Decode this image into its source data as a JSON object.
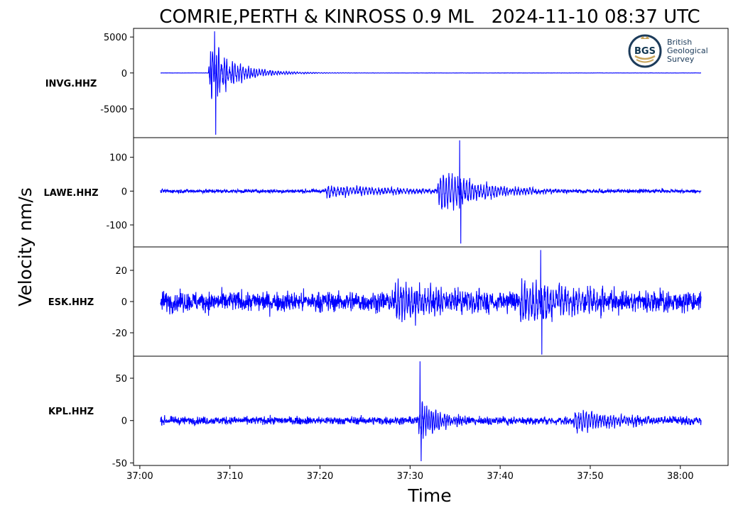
{
  "chart_data": {
    "type": "line",
    "title": "COMRIE,PERTH & KINROSS 0.9 ML   2024-11-10 08:37 UTC",
    "xlabel": "Time",
    "ylabel": "Velocity nm/s",
    "x_ticks": [
      "37:00",
      "37:10",
      "37:20",
      "37:30",
      "37:40",
      "37:50",
      "38:00"
    ],
    "x_tick_seconds": [
      0,
      10,
      20,
      30,
      40,
      50,
      60
    ],
    "xlim_seconds": [
      -0.7,
      65.3
    ],
    "trace_range_seconds": [
      2.3,
      62.3
    ],
    "color": "#0000ff",
    "logo": {
      "acronym": "BGS",
      "lines": [
        "British",
        "Geological",
        "Survey"
      ]
    },
    "panels": [
      {
        "station": "INVG.HHZ",
        "yticks": [
          5000,
          0,
          -5000
        ],
        "ylim": [
          -9000,
          6200
        ],
        "arrivals": [
          {
            "t": 7.6,
            "amp": 6200,
            "decay": 1.2,
            "period": 0.22
          },
          {
            "t": 8.4,
            "amp": 3500,
            "decay": 3.0,
            "period": 0.3
          }
        ],
        "noise": 15,
        "peaks": {
          "max": 5800,
          "min": -8600,
          "t": 8.3
        }
      },
      {
        "station": "LAWE.HHZ",
        "yticks": [
          100,
          0,
          -100
        ],
        "ylim": [
          -165,
          158
        ],
        "arrivals": [
          {
            "t": 20.5,
            "amp": 25,
            "decay": 8.0,
            "period": 0.35
          },
          {
            "t": 33.0,
            "amp": 90,
            "decay": 4.5,
            "period": 0.32
          }
        ],
        "noise": 6,
        "peaks": {
          "max": 150,
          "min": -155,
          "t": 35.5
        }
      },
      {
        "station": "ESK.HHZ",
        "yticks": [
          20,
          0,
          -20
        ],
        "ylim": [
          -35,
          35
        ],
        "arrivals": [
          {
            "t": 28.0,
            "amp": 15,
            "decay": 6.0,
            "period": 0.3
          },
          {
            "t": 42.0,
            "amp": 18,
            "decay": 7.0,
            "period": 0.32
          }
        ],
        "noise": 7,
        "peaks": {
          "max": 33,
          "min": -34,
          "t": 44.5
        }
      },
      {
        "station": "KPL.HHZ",
        "yticks": [
          50,
          0,
          -50
        ],
        "ylim": [
          -53,
          76
        ],
        "arrivals": [
          {
            "t": 30.8,
            "amp": 35,
            "decay": 2.5,
            "period": 0.25
          },
          {
            "t": 48.0,
            "amp": 17,
            "decay": 5.5,
            "period": 0.3
          }
        ],
        "noise": 5,
        "peaks": {
          "max": 70,
          "min": -48,
          "t": 31.1
        }
      }
    ]
  }
}
